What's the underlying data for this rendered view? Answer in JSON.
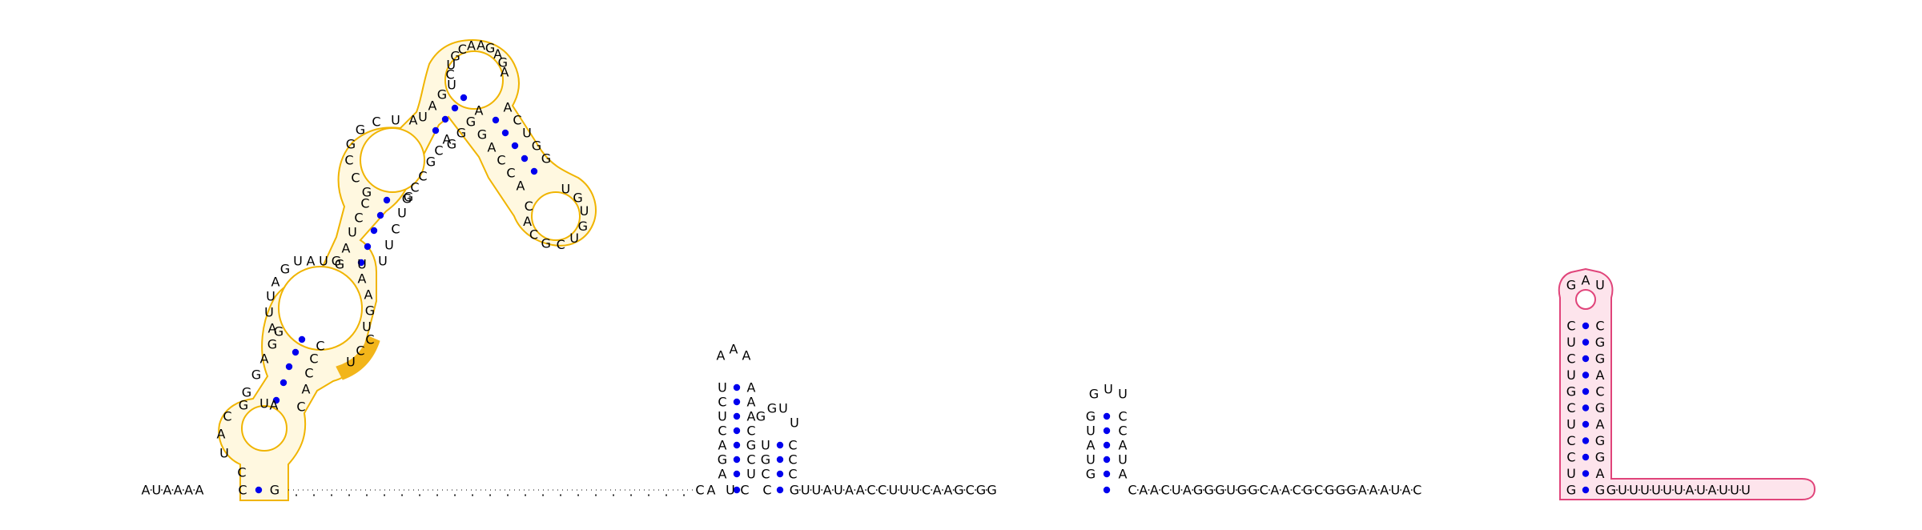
{
  "colors": {
    "domain1_stroke": "#f0b400",
    "domain1_fill": "#fff8e0",
    "domain1_highlight": "#f2b51a",
    "domain2_stroke": "#e0447a",
    "domain2_fill": "#fde4ec",
    "base_pair_dot": "#0000ee",
    "backbone": "#000000"
  },
  "structure": {
    "leader": [
      "A",
      "U",
      "A",
      "A",
      "A",
      "A"
    ],
    "domain1": {
      "closing_pair": [
        "C",
        "G"
      ],
      "hairpin1_left": [
        "C",
        "U",
        "A",
        "C",
        "G",
        "U",
        "A"
      ],
      "stem1_pairs_left": [
        "G",
        "G",
        "A",
        "G",
        "G"
      ],
      "left_arm_bulge": [
        "A",
        "U",
        "U",
        "A",
        "G"
      ],
      "interior_top": [
        "U",
        "A",
        "U",
        "G"
      ],
      "stem2_pairs_left": [
        "G",
        "A",
        "U",
        "C",
        "C"
      ],
      "upper_left": [
        "G",
        "C",
        "C",
        "G",
        "G",
        "C",
        "U",
        "A"
      ],
      "apex_loop": [
        "C",
        "U",
        "G",
        "C",
        "A",
        "A",
        "G",
        "A",
        "G",
        "A"
      ],
      "stem3_pairs_right": [
        "A",
        "C",
        "U",
        "G",
        "G"
      ],
      "hairpin_right_loop": [
        "U",
        "G",
        "U",
        "G",
        "U",
        "C",
        "G",
        "C",
        "A",
        "C"
      ],
      "stem3_pairs_left": [
        "U",
        "U",
        "G",
        "G",
        "A",
        "C",
        "G"
      ],
      "lower_right": [
        "C",
        "C",
        "G",
        "C",
        "U",
        "U",
        "C",
        "U",
        "G",
        "G",
        "A",
        "A",
        "U",
        "U"
      ],
      "highlight_bases": [
        "U",
        "C",
        "C"
      ],
      "right_arm": [
        "C",
        "A",
        "C",
        "C",
        "C",
        "G",
        "G",
        "A",
        "U"
      ]
    },
    "unpaired_region_label": "",
    "hairpin2": {
      "stem_left": [
        "A",
        "G",
        "A",
        "C",
        "U",
        "C",
        "U"
      ],
      "stem_right": [
        "U",
        "C",
        "G",
        "C",
        "A",
        "A",
        "A"
      ],
      "loop": [
        "A",
        "A",
        "A"
      ],
      "inner_left": [
        "C",
        "G",
        "U"
      ],
      "inner_loop": [
        "G",
        "G",
        "U",
        "U"
      ],
      "inner_right": [
        "C",
        "C",
        "C"
      ]
    },
    "linker1": [
      "G",
      "U",
      "U",
      "A",
      "U",
      "A",
      "A",
      "C",
      "C",
      "U",
      "U",
      "U",
      "C",
      "A",
      "A",
      "G",
      "C",
      "G",
      "G"
    ],
    "hairpin3": {
      "stem_left": [
        "G",
        "U",
        "A",
        "U",
        "G"
      ],
      "loop": [
        "G",
        "U",
        "U"
      ],
      "stem_right": [
        "A",
        "U",
        "A",
        "C",
        "C"
      ]
    },
    "linker2": [
      "C",
      "A",
      "A",
      "C",
      "U",
      "A",
      "G",
      "G",
      "G",
      "U",
      "G",
      "G",
      "C",
      "A",
      "A",
      "C",
      "G",
      "C",
      "G",
      "G",
      "G",
      "A",
      "A",
      "A",
      "U",
      "A",
      "C"
    ],
    "domain2": {
      "stem_left": [
        "C",
        "U",
        "C",
        "U",
        "G",
        "C",
        "U",
        "C",
        "C",
        "U",
        "G"
      ],
      "loop": [
        "G",
        "A",
        "U"
      ],
      "stem_right": [
        "C",
        "G",
        "G",
        "A",
        "C",
        "G",
        "A",
        "G",
        "G",
        "A",
        "G"
      ]
    },
    "trailer": [
      "G",
      "U",
      "U",
      "U",
      "U",
      "U",
      "U",
      "A",
      "U",
      "A",
      "U",
      "U",
      "U"
    ]
  }
}
